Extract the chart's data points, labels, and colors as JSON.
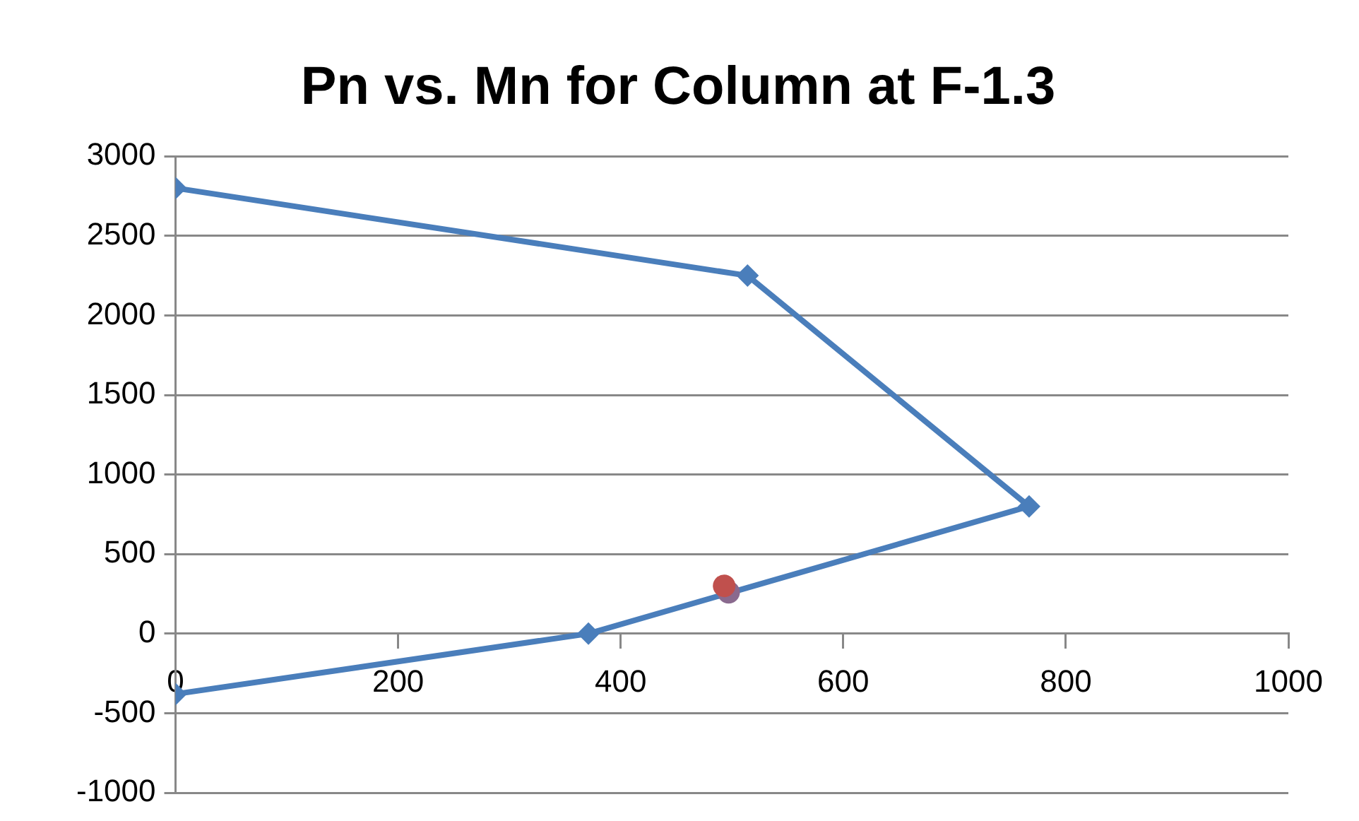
{
  "chart_data": {
    "type": "line",
    "title": "Pn vs. Mn for Column at F-1.3",
    "xlim": [
      0,
      1000
    ],
    "xticks": [
      0,
      200,
      400,
      600,
      800,
      1000
    ],
    "ylim": [
      -1000,
      3000
    ],
    "yticks": [
      -1000,
      -500,
      0,
      500,
      1000,
      1500,
      2000,
      2500,
      3000
    ],
    "grid": "y",
    "legend": false,
    "series": [
      {
        "color": "#4a7ebb",
        "marker": "diamond",
        "x": [
          0,
          514,
          767,
          371,
          0
        ],
        "values": [
          2800,
          2250,
          800,
          0,
          -380
        ]
      },
      {
        "type": "scatter",
        "color": "#8a6a8e",
        "marker": "circle",
        "x": [
          497
        ],
        "values": [
          260
        ]
      },
      {
        "type": "scatter",
        "color": "#c0504d",
        "marker": "circle",
        "x": [
          493
        ],
        "values": [
          300
        ]
      }
    ]
  }
}
